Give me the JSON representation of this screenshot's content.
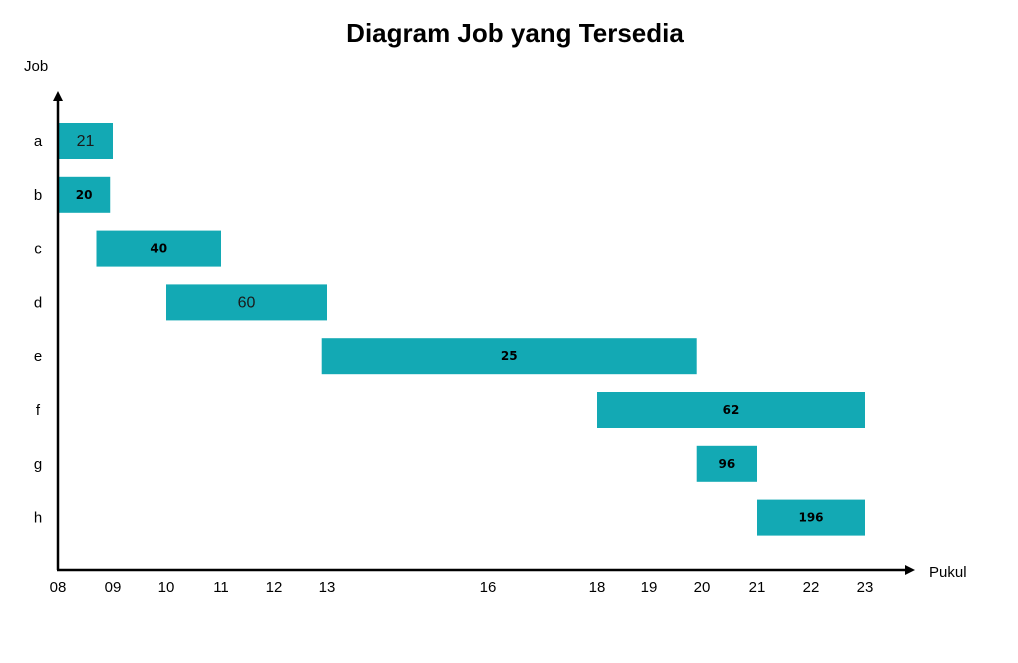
{
  "chart_data": {
    "type": "gantt",
    "title": "Diagram Job yang Tersedia",
    "xlabel": "Pukul",
    "ylabel": "Job",
    "x_ticks": [
      "08",
      "09",
      "10",
      "11",
      "12",
      "13",
      "16",
      "18",
      "19",
      "20",
      "21",
      "22",
      "23"
    ],
    "bar_color": "#13a9b4",
    "bars": [
      {
        "job": "a",
        "start": 8.0,
        "end": 9.0,
        "label": "21",
        "bold": false
      },
      {
        "job": "b",
        "start": 8.0,
        "end": 8.95,
        "label": "20",
        "bold": true
      },
      {
        "job": "c",
        "start": 8.7,
        "end": 11.0,
        "label": "40",
        "bold": true
      },
      {
        "job": "d",
        "start": 10.0,
        "end": 13.0,
        "label": "60",
        "bold": false
      },
      {
        "job": "e",
        "start": 12.9,
        "end": 19.9,
        "label": "25",
        "bold": true
      },
      {
        "job": "f",
        "start": 18.0,
        "end": 23.0,
        "label": "62",
        "bold": true
      },
      {
        "job": "g",
        "start": 19.9,
        "end": 21.0,
        "label": "96",
        "bold": true
      },
      {
        "job": "h",
        "start": 21.0,
        "end": 23.0,
        "label": "196",
        "bold": true
      }
    ]
  }
}
